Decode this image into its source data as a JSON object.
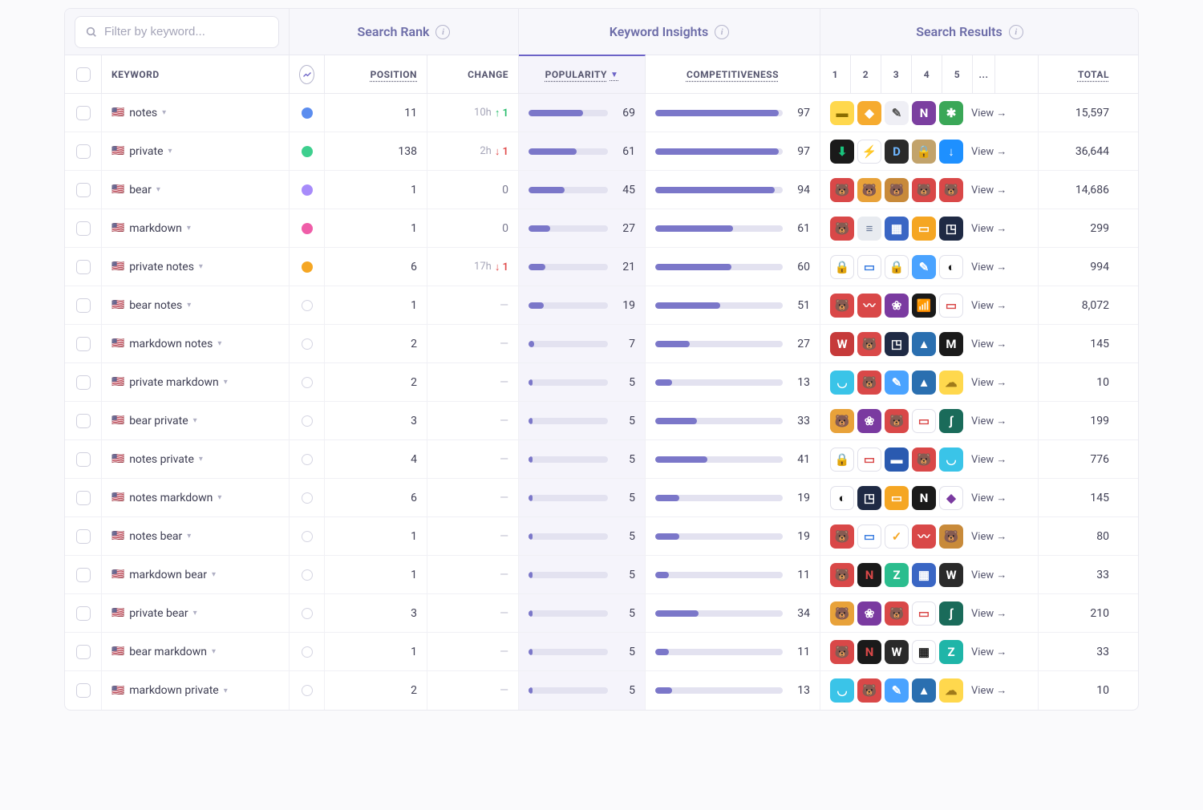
{
  "filter": {
    "placeholder": "Filter by keyword..."
  },
  "top_headers": {
    "search_rank": "Search Rank",
    "keyword_insights": "Keyword Insights",
    "search_results": "Search Results"
  },
  "columns": {
    "keyword": "KEYWORD",
    "position": "POSITION",
    "change": "CHANGE",
    "popularity": "POPULARITY",
    "competitiveness": "COMPETITIVENESS",
    "r1": "1",
    "r2": "2",
    "r3": "3",
    "r4": "4",
    "r5": "5",
    "rmore": "...",
    "total": "TOTAL"
  },
  "view_label": "View →",
  "bar_fill_color": "#7b77c9",
  "bar_track_color": "#e3e2f0",
  "dot_colors": {
    "blue": "#5b8def",
    "green": "#3ecf8e",
    "purple": "#a78bfa",
    "pink": "#ef5da8",
    "orange": "#f5a623"
  },
  "rows": [
    {
      "keyword": "notes",
      "flag": "🇺🇸",
      "dot": "blue",
      "position": "11",
      "change_time": "10h",
      "change_dir": "up",
      "change_val": "1",
      "popularity": 69,
      "competitiveness": 97,
      "apps": [
        {
          "bg": "#ffd84d",
          "fg": "#8a6d00",
          "glyph": "▬"
        },
        {
          "bg": "#f6ab2f",
          "fg": "#fff",
          "glyph": "◆"
        },
        {
          "bg": "#efeff5",
          "fg": "#555",
          "glyph": "✎"
        },
        {
          "bg": "#7b3fa0",
          "fg": "#fff",
          "glyph": "N"
        },
        {
          "bg": "#3aa757",
          "fg": "#fff",
          "glyph": "✱"
        }
      ],
      "total": "15,597"
    },
    {
      "keyword": "private",
      "flag": "🇺🇸",
      "dot": "green",
      "position": "138",
      "change_time": "2h",
      "change_dir": "down",
      "change_val": "1",
      "popularity": 61,
      "competitiveness": 97,
      "apps": [
        {
          "bg": "#1a1a1a",
          "fg": "#19c37d",
          "glyph": "⬇"
        },
        {
          "bg": "#ffffff",
          "fg": "#1e90ff",
          "glyph": "⚡",
          "border": true
        },
        {
          "bg": "#2a2a2a",
          "fg": "#6eb6ff",
          "glyph": "D"
        },
        {
          "bg": "#c2a36b",
          "fg": "#3a2a10",
          "glyph": "🔒"
        },
        {
          "bg": "#1e90ff",
          "fg": "#fff",
          "glyph": "↓"
        }
      ],
      "total": "36,644"
    },
    {
      "keyword": "bear",
      "flag": "🇺🇸",
      "dot": "purple",
      "position": "1",
      "change_zero": "0",
      "popularity": 45,
      "competitiveness": 94,
      "apps": [
        {
          "bg": "#d94848",
          "fg": "#fff",
          "glyph": "🐻"
        },
        {
          "bg": "#e8a23a",
          "fg": "#5a3a10",
          "glyph": "🐻"
        },
        {
          "bg": "#c88a3a",
          "fg": "#fff",
          "glyph": "🐻"
        },
        {
          "bg": "#d94848",
          "fg": "#fff",
          "glyph": "🐻"
        },
        {
          "bg": "#d94848",
          "fg": "#fff",
          "glyph": "🐻"
        }
      ],
      "total": "14,686"
    },
    {
      "keyword": "markdown",
      "flag": "🇺🇸",
      "dot": "pink",
      "position": "1",
      "change_zero": "0",
      "popularity": 27,
      "competitiveness": 61,
      "apps": [
        {
          "bg": "#d94848",
          "fg": "#fff",
          "glyph": "🐻"
        },
        {
          "bg": "#e8ebf0",
          "fg": "#6a7a99",
          "glyph": "≡"
        },
        {
          "bg": "#3a66c4",
          "fg": "#fff",
          "glyph": "▦"
        },
        {
          "bg": "#f5a623",
          "fg": "#fff",
          "glyph": "▭"
        },
        {
          "bg": "#1f2a44",
          "fg": "#fff",
          "glyph": "◳"
        }
      ],
      "total": "299"
    },
    {
      "keyword": "private notes",
      "flag": "🇺🇸",
      "dot": "orange",
      "position": "6",
      "change_time": "17h",
      "change_dir": "down",
      "change_val": "1",
      "popularity": 21,
      "competitiveness": 60,
      "apps": [
        {
          "bg": "#ffffff",
          "fg": "#d94848",
          "glyph": "🔒",
          "border": true
        },
        {
          "bg": "#ffffff",
          "fg": "#3a7de0",
          "glyph": "▭",
          "border": true
        },
        {
          "bg": "#ffffff",
          "fg": "#d94848",
          "glyph": "🔒",
          "border": true
        },
        {
          "bg": "#4aa3ff",
          "fg": "#fff",
          "glyph": "✎"
        },
        {
          "bg": "#ffffff",
          "fg": "#1a1a1a",
          "glyph": "◐",
          "border": true
        }
      ],
      "total": "994"
    },
    {
      "keyword": "bear notes",
      "flag": "🇺🇸",
      "dot": null,
      "position": "1",
      "change_dash": true,
      "popularity": 19,
      "competitiveness": 51,
      "apps": [
        {
          "bg": "#d94848",
          "fg": "#fff",
          "glyph": "🐻"
        },
        {
          "bg": "#d94848",
          "fg": "#fff",
          "glyph": "〰"
        },
        {
          "bg": "#7a3aa0",
          "fg": "#fff",
          "glyph": "❀"
        },
        {
          "bg": "#1a1a1a",
          "fg": "#fff",
          "glyph": "📶"
        },
        {
          "bg": "#ffffff",
          "fg": "#d94848",
          "glyph": "▭",
          "border": true
        }
      ],
      "total": "8,072"
    },
    {
      "keyword": "markdown notes",
      "flag": "🇺🇸",
      "dot": null,
      "position": "2",
      "change_dash": true,
      "popularity": 7,
      "competitiveness": 27,
      "apps": [
        {
          "bg": "#c63a3a",
          "fg": "#fff",
          "glyph": "W"
        },
        {
          "bg": "#d94848",
          "fg": "#fff",
          "glyph": "🐻"
        },
        {
          "bg": "#1f2a44",
          "fg": "#fff",
          "glyph": "◳"
        },
        {
          "bg": "#2a6fb0",
          "fg": "#fff",
          "glyph": "▲"
        },
        {
          "bg": "#1a1a1a",
          "fg": "#fff",
          "glyph": "M"
        }
      ],
      "total": "145"
    },
    {
      "keyword": "private markdown",
      "flag": "🇺🇸",
      "dot": null,
      "position": "2",
      "change_dash": true,
      "popularity": 5,
      "competitiveness": 13,
      "apps": [
        {
          "bg": "#3ac4e8",
          "fg": "#fff",
          "glyph": "◡"
        },
        {
          "bg": "#d94848",
          "fg": "#fff",
          "glyph": "🐻"
        },
        {
          "bg": "#4aa3ff",
          "fg": "#fff",
          "glyph": "✎"
        },
        {
          "bg": "#2a6fb0",
          "fg": "#fff",
          "glyph": "▲"
        },
        {
          "bg": "#ffd84d",
          "fg": "#a07a1a",
          "glyph": "☁"
        }
      ],
      "total": "10"
    },
    {
      "keyword": "bear private",
      "flag": "🇺🇸",
      "dot": null,
      "position": "3",
      "change_dash": true,
      "popularity": 5,
      "competitiveness": 33,
      "apps": [
        {
          "bg": "#e8a23a",
          "fg": "#5a3a10",
          "glyph": "🐻"
        },
        {
          "bg": "#7a3aa0",
          "fg": "#fff",
          "glyph": "❀"
        },
        {
          "bg": "#d94848",
          "fg": "#fff",
          "glyph": "🐻"
        },
        {
          "bg": "#ffffff",
          "fg": "#d94848",
          "glyph": "▭",
          "border": true
        },
        {
          "bg": "#1a6b5a",
          "fg": "#fff",
          "glyph": "∫"
        }
      ],
      "total": "199"
    },
    {
      "keyword": "notes private",
      "flag": "🇺🇸",
      "dot": null,
      "position": "4",
      "change_dash": true,
      "popularity": 5,
      "competitiveness": 41,
      "apps": [
        {
          "bg": "#ffffff",
          "fg": "#d94848",
          "glyph": "🔒",
          "border": true
        },
        {
          "bg": "#ffffff",
          "fg": "#d94848",
          "glyph": "▭",
          "border": true
        },
        {
          "bg": "#2a5ab0",
          "fg": "#fff",
          "glyph": "▬"
        },
        {
          "bg": "#d94848",
          "fg": "#fff",
          "glyph": "🐻"
        },
        {
          "bg": "#3ac4e8",
          "fg": "#fff",
          "glyph": "◡"
        }
      ],
      "total": "776"
    },
    {
      "keyword": "notes markdown",
      "flag": "🇺🇸",
      "dot": null,
      "position": "6",
      "change_dash": true,
      "popularity": 5,
      "competitiveness": 19,
      "apps": [
        {
          "bg": "#ffffff",
          "fg": "#1a1a1a",
          "glyph": "◐",
          "border": true
        },
        {
          "bg": "#1f2a44",
          "fg": "#fff",
          "glyph": "◳"
        },
        {
          "bg": "#f5a623",
          "fg": "#fff",
          "glyph": "▭"
        },
        {
          "bg": "#1a1a1a",
          "fg": "#fff",
          "glyph": "N"
        },
        {
          "bg": "#ffffff",
          "fg": "#7a3aa0",
          "glyph": "◆",
          "border": true
        }
      ],
      "total": "145"
    },
    {
      "keyword": "notes bear",
      "flag": "🇺🇸",
      "dot": null,
      "position": "1",
      "change_dash": true,
      "popularity": 5,
      "competitiveness": 19,
      "apps": [
        {
          "bg": "#d94848",
          "fg": "#fff",
          "glyph": "🐻"
        },
        {
          "bg": "#ffffff",
          "fg": "#3a7de0",
          "glyph": "▭",
          "border": true
        },
        {
          "bg": "#ffffff",
          "fg": "#f5a623",
          "glyph": "✓",
          "border": true
        },
        {
          "bg": "#d94848",
          "fg": "#fff",
          "glyph": "〰"
        },
        {
          "bg": "#c88a3a",
          "fg": "#fff",
          "glyph": "🐻"
        }
      ],
      "total": "80"
    },
    {
      "keyword": "markdown bear",
      "flag": "🇺🇸",
      "dot": null,
      "position": "1",
      "change_dash": true,
      "popularity": 5,
      "competitiveness": 11,
      "apps": [
        {
          "bg": "#d94848",
          "fg": "#fff",
          "glyph": "🐻"
        },
        {
          "bg": "#1a1a1a",
          "fg": "#d94848",
          "glyph": "N"
        },
        {
          "bg": "#2bbd8e",
          "fg": "#fff",
          "glyph": "Z"
        },
        {
          "bg": "#3a66c4",
          "fg": "#fff",
          "glyph": "▦"
        },
        {
          "bg": "#2a2a2a",
          "fg": "#fff",
          "glyph": "W"
        }
      ],
      "total": "33"
    },
    {
      "keyword": "private bear",
      "flag": "🇺🇸",
      "dot": null,
      "position": "3",
      "change_dash": true,
      "popularity": 5,
      "competitiveness": 34,
      "apps": [
        {
          "bg": "#e8a23a",
          "fg": "#5a3a10",
          "glyph": "🐻"
        },
        {
          "bg": "#7a3aa0",
          "fg": "#fff",
          "glyph": "❀"
        },
        {
          "bg": "#d94848",
          "fg": "#fff",
          "glyph": "🐻"
        },
        {
          "bg": "#ffffff",
          "fg": "#d94848",
          "glyph": "▭",
          "border": true
        },
        {
          "bg": "#1a6b5a",
          "fg": "#fff",
          "glyph": "∫"
        }
      ],
      "total": "210"
    },
    {
      "keyword": "bear markdown",
      "flag": "🇺🇸",
      "dot": null,
      "position": "1",
      "change_dash": true,
      "popularity": 5,
      "competitiveness": 11,
      "apps": [
        {
          "bg": "#d94848",
          "fg": "#fff",
          "glyph": "🐻"
        },
        {
          "bg": "#1a1a1a",
          "fg": "#d94848",
          "glyph": "N"
        },
        {
          "bg": "#2a2a2a",
          "fg": "#fff",
          "glyph": "W"
        },
        {
          "bg": "#ffffff",
          "fg": "#1a1a1a",
          "glyph": "▦",
          "border": true
        },
        {
          "bg": "#1fb5a8",
          "fg": "#fff",
          "glyph": "Z"
        }
      ],
      "total": "33"
    },
    {
      "keyword": "markdown private",
      "flag": "🇺🇸",
      "dot": null,
      "position": "2",
      "change_dash": true,
      "popularity": 5,
      "competitiveness": 13,
      "apps": [
        {
          "bg": "#3ac4e8",
          "fg": "#fff",
          "glyph": "◡"
        },
        {
          "bg": "#d94848",
          "fg": "#fff",
          "glyph": "🐻"
        },
        {
          "bg": "#4aa3ff",
          "fg": "#fff",
          "glyph": "✎"
        },
        {
          "bg": "#2a6fb0",
          "fg": "#fff",
          "glyph": "▲"
        },
        {
          "bg": "#ffd84d",
          "fg": "#a07a1a",
          "glyph": "☁"
        }
      ],
      "total": "10"
    }
  ]
}
